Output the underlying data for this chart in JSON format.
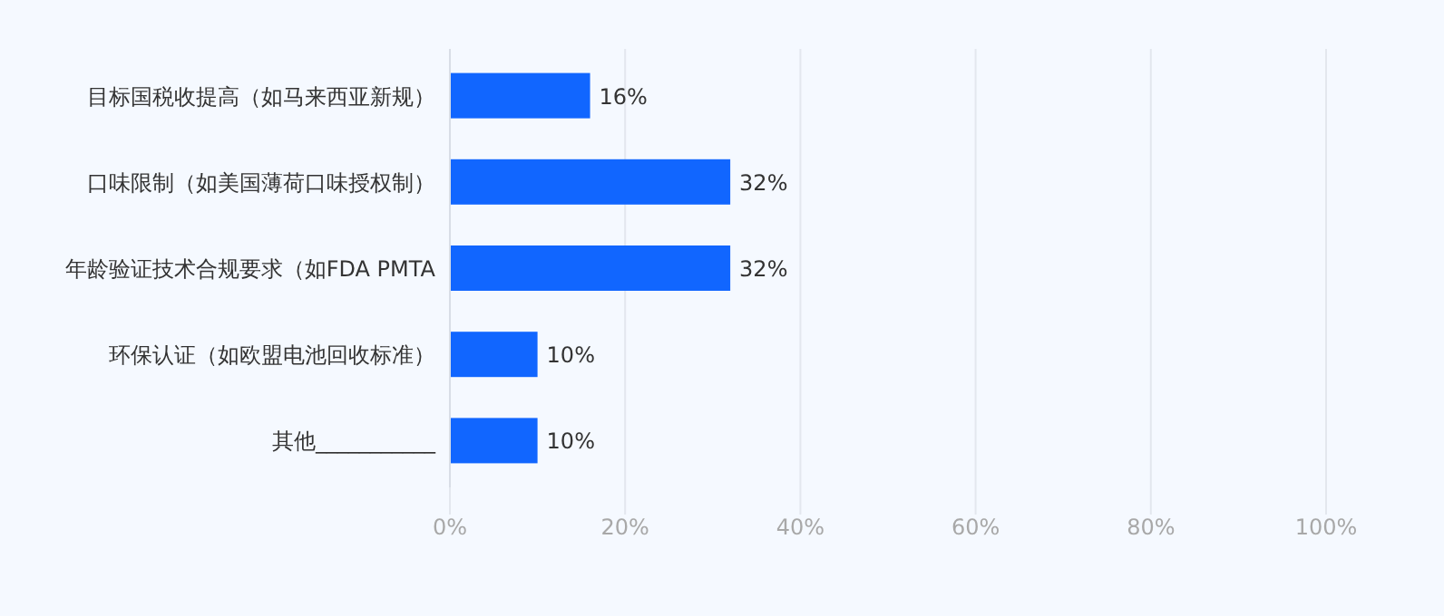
{
  "chart_data": {
    "type": "bar",
    "orientation": "horizontal",
    "categories": [
      "目标国税收提高（如马来西亚新规）",
      "口味限制（如美国薄荷口味授权制）",
      "年龄验证技术合规要求（如FDA PMTA",
      "环保认证（如欧盟电池回收标准）",
      "其他___________"
    ],
    "values": [
      16,
      32,
      32,
      10,
      10
    ],
    "value_labels": [
      "16%",
      "32%",
      "32%",
      "10%",
      "10%"
    ],
    "color": "#1166ff",
    "xlim": [
      0,
      100
    ],
    "xticks": [
      {
        "value": 0,
        "label": "0%"
      },
      {
        "value": 20,
        "label": "20%"
      },
      {
        "value": 40,
        "label": "40%"
      },
      {
        "value": 60,
        "label": "60%"
      },
      {
        "value": 80,
        "label": "80%"
      },
      {
        "value": 100,
        "label": "100%"
      }
    ],
    "grid": "x"
  }
}
